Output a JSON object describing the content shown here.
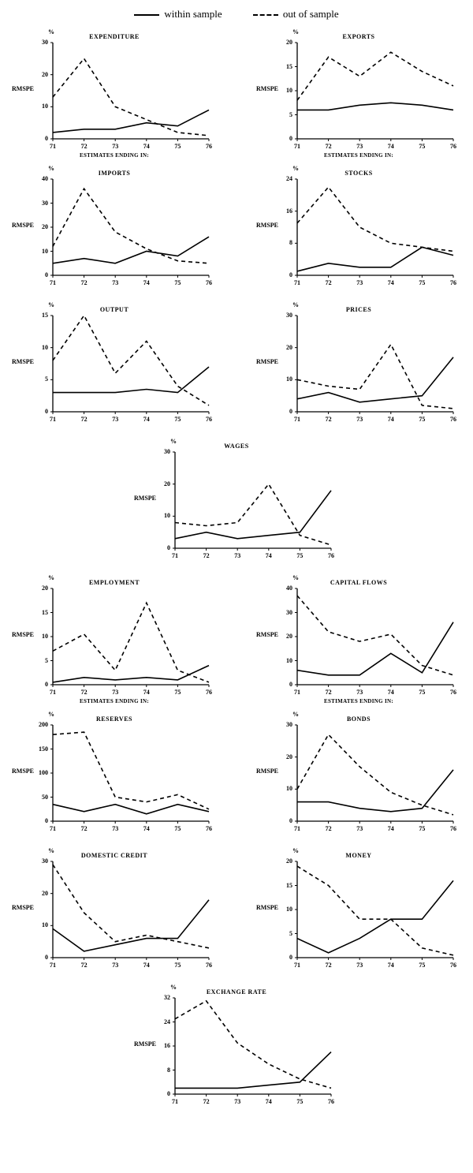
{
  "legend": {
    "within": "within sample",
    "out": "out of sample"
  },
  "common": {
    "ylabel_pct": "%",
    "ylabel_rmspe": "RMSPE",
    "xlabel_full": "ESTIMATES ENDING IN:",
    "x_categories": [
      "71",
      "72",
      "73",
      "74",
      "75",
      "76"
    ],
    "line_color": "#000000",
    "within_dash": "none",
    "out_dash": "5,4",
    "stroke_width": 1.6,
    "axis_color": "#000000",
    "background_color": "#ffffff",
    "label_fontsize": 8,
    "title_fontsize": 8
  },
  "panels": [
    {
      "id": "expenditure",
      "title": "EXPENDITURE",
      "ylim": [
        0,
        30
      ],
      "yticks": [
        0,
        10,
        20,
        30
      ],
      "show_xlabel": true,
      "within": [
        2,
        3,
        3,
        5,
        4,
        9
      ],
      "out": [
        13,
        25,
        10,
        6,
        2,
        1
      ]
    },
    {
      "id": "exports",
      "title": "EXPORTS",
      "ylim": [
        0,
        20
      ],
      "yticks": [
        0,
        5,
        10,
        15,
        20
      ],
      "show_xlabel": true,
      "within": [
        6,
        6,
        7,
        7.5,
        7,
        6
      ],
      "out": [
        8,
        17,
        13,
        18,
        14,
        11
      ]
    },
    {
      "id": "imports",
      "title": "IMPORTS",
      "ylim": [
        0,
        40
      ],
      "yticks": [
        0,
        10,
        20,
        30,
        40
      ],
      "show_xlabel": false,
      "within": [
        5,
        7,
        5,
        10,
        8,
        16
      ],
      "out": [
        12,
        36,
        18,
        11,
        6,
        5
      ]
    },
    {
      "id": "stocks",
      "title": "STOCKS",
      "ylim": [
        0,
        24
      ],
      "yticks": [
        0,
        8,
        16,
        24
      ],
      "show_xlabel": false,
      "within": [
        1,
        3,
        2,
        2,
        7,
        5
      ],
      "out": [
        13,
        22,
        12,
        8,
        7,
        6
      ]
    },
    {
      "id": "output",
      "title": "OUTPUT",
      "ylim": [
        0,
        15
      ],
      "yticks": [
        0,
        5,
        10,
        15
      ],
      "show_xlabel": false,
      "within": [
        3,
        3,
        3,
        3.5,
        3,
        7
      ],
      "out": [
        8,
        15,
        6,
        11,
        4,
        1
      ]
    },
    {
      "id": "prices",
      "title": "PRICES",
      "ylim": [
        0,
        30
      ],
      "yticks": [
        0,
        10,
        20,
        30
      ],
      "show_xlabel": false,
      "within": [
        4,
        6,
        3,
        4,
        5,
        17
      ],
      "out": [
        10,
        8,
        7,
        21,
        2,
        1
      ]
    },
    {
      "id": "wages",
      "title": "WAGES",
      "center": true,
      "ylim": [
        0,
        30
      ],
      "yticks": [
        0,
        10,
        20,
        30
      ],
      "show_xlabel": false,
      "within": [
        3,
        5,
        3,
        4,
        5,
        18
      ],
      "out": [
        8,
        7,
        8,
        20,
        4,
        1
      ]
    },
    {
      "id": "employment",
      "title": "EMPLOYMENT",
      "ylim": [
        0,
        20
      ],
      "yticks": [
        0,
        5,
        10,
        15,
        20
      ],
      "show_xlabel": true,
      "within": [
        0.5,
        1.5,
        1,
        1.5,
        1,
        4
      ],
      "out": [
        7,
        10.5,
        3,
        17,
        3,
        0.5
      ]
    },
    {
      "id": "capital",
      "title": "CAPITAL FLOWS",
      "ylim": [
        0,
        40
      ],
      "yticks": [
        0,
        10,
        20,
        30,
        40
      ],
      "show_xlabel": true,
      "within": [
        6,
        4,
        4,
        13,
        5,
        26
      ],
      "out": [
        37,
        22,
        18,
        21,
        8,
        4
      ]
    },
    {
      "id": "reserves",
      "title": "RESERVES",
      "ylim": [
        0,
        200
      ],
      "yticks": [
        0,
        50,
        100,
        150,
        200
      ],
      "show_xlabel": false,
      "within": [
        35,
        20,
        35,
        15,
        35,
        20
      ],
      "out": [
        180,
        185,
        50,
        40,
        55,
        25
      ]
    },
    {
      "id": "bonds",
      "title": "BONDS",
      "ylim": [
        0,
        30
      ],
      "yticks": [
        0,
        10,
        20,
        30
      ],
      "show_xlabel": false,
      "within": [
        6,
        6,
        4,
        3,
        4,
        16
      ],
      "out": [
        10,
        27,
        17,
        9,
        5,
        2
      ]
    },
    {
      "id": "credit",
      "title": "DOMESTIC CREDIT",
      "ylim": [
        0,
        30
      ],
      "yticks": [
        0,
        10,
        20,
        30
      ],
      "show_xlabel": false,
      "within": [
        9,
        2,
        4,
        6,
        6,
        18
      ],
      "out": [
        29,
        14,
        5,
        7,
        5,
        3
      ]
    },
    {
      "id": "money",
      "title": "MONEY",
      "ylim": [
        0,
        20
      ],
      "yticks": [
        0,
        5,
        10,
        15,
        20
      ],
      "show_xlabel": false,
      "within": [
        4,
        1,
        4,
        8,
        8,
        16
      ],
      "out": [
        19,
        15,
        8,
        8,
        2,
        0.5
      ]
    },
    {
      "id": "exchange",
      "title": "EXCHANGE RATE",
      "center": true,
      "ylim": [
        0,
        32
      ],
      "yticks": [
        0,
        8,
        16,
        24,
        32
      ],
      "show_xlabel": false,
      "within": [
        2,
        2,
        2,
        3,
        4,
        14
      ],
      "out": [
        25,
        31,
        17,
        10,
        5,
        2
      ]
    }
  ]
}
